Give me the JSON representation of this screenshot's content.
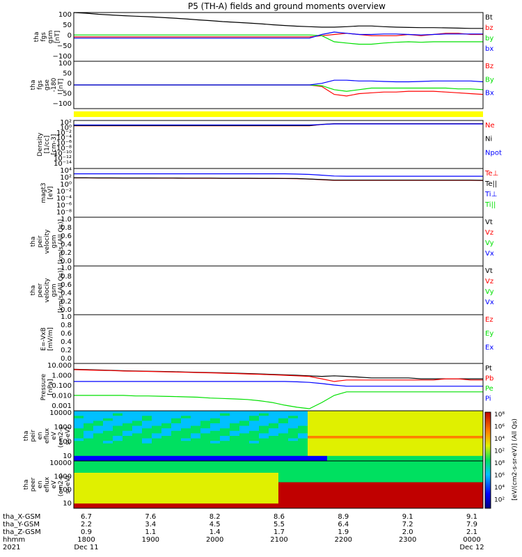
{
  "page": {
    "title": "P5 (TH-A) fields and ground moments overview"
  },
  "colors": {
    "black": "#000000",
    "red": "#ff0000",
    "green": "#00e000",
    "blue": "#0000ff",
    "yellow": "#ffff00"
  },
  "chart_data": [
    {
      "id": "fgs_gsm",
      "type": "line",
      "ylabel": [
        "tha",
        "fgs",
        "gsm",
        "[nT]"
      ],
      "ylim": [
        -100,
        100
      ],
      "yticks": [
        "100",
        "50",
        "0",
        "−50",
        "−100"
      ],
      "series": [
        {
          "name": "Bt",
          "color": "#000000",
          "values": [
            100,
            97,
            93,
            90,
            87,
            85,
            83,
            80,
            77,
            74,
            70,
            67,
            63,
            60,
            57,
            54,
            50,
            47,
            44,
            42,
            40,
            40,
            42,
            45,
            45,
            42,
            40,
            39,
            38,
            38,
            37,
            36,
            35,
            35
          ]
        },
        {
          "name": "bz",
          "color": "#ff0000",
          "values": [
            0,
            0,
            0,
            0,
            0,
            0,
            0,
            0,
            0,
            0,
            0,
            0,
            0,
            0,
            0,
            0,
            0,
            0,
            0,
            0,
            5,
            10,
            15,
            10,
            5,
            5,
            5,
            10,
            5,
            10,
            15,
            15,
            10,
            10
          ]
        },
        {
          "name": "by",
          "color": "#00e000",
          "values": [
            8,
            8,
            8,
            8,
            8,
            8,
            8,
            8,
            8,
            8,
            8,
            8,
            8,
            8,
            8,
            8,
            8,
            8,
            8,
            8,
            5,
            -20,
            -25,
            -30,
            -30,
            -25,
            -22,
            -20,
            -22,
            -20,
            -20,
            -20,
            -20,
            -20
          ]
        },
        {
          "name": "bx",
          "color": "#0000ff",
          "values": [
            -5,
            -5,
            -5,
            -5,
            -5,
            -5,
            -5,
            -5,
            -5,
            -5,
            -5,
            -5,
            -5,
            -5,
            -5,
            -5,
            -5,
            -5,
            -5,
            -5,
            10,
            20,
            15,
            10,
            10,
            12,
            12,
            10,
            8,
            10,
            12,
            12,
            12,
            12
          ]
        }
      ]
    },
    {
      "id": "fgs_gse",
      "type": "line",
      "ylabel": [
        "tha",
        "fgs",
        "gse",
        "-180",
        "[nT]"
      ],
      "ylim": [
        -150,
        150
      ],
      "yticks": [
        "100",
        "50",
        "0",
        "−50",
        "−100"
      ],
      "series": [
        {
          "name": "Bz",
          "color": "#ff0000",
          "values": [
            0,
            0,
            0,
            0,
            0,
            0,
            0,
            0,
            0,
            0,
            0,
            0,
            0,
            0,
            0,
            0,
            0,
            0,
            0,
            0,
            -10,
            -60,
            -70,
            -55,
            -50,
            -45,
            -45,
            -40,
            -40,
            -40,
            -45,
            -50,
            -55,
            -60
          ]
        },
        {
          "name": "By",
          "color": "#00e000",
          "values": [
            0,
            0,
            0,
            0,
            0,
            0,
            0,
            0,
            0,
            0,
            0,
            0,
            0,
            0,
            0,
            0,
            0,
            0,
            0,
            0,
            -5,
            -30,
            -40,
            -30,
            -20,
            -20,
            -20,
            -20,
            -20,
            -20,
            -20,
            -25,
            -25,
            -30
          ]
        },
        {
          "name": "Bx",
          "color": "#0000ff",
          "values": [
            0,
            0,
            0,
            0,
            0,
            0,
            0,
            0,
            0,
            0,
            0,
            0,
            0,
            0,
            0,
            0,
            0,
            0,
            0,
            0,
            10,
            30,
            30,
            25,
            25,
            22,
            20,
            20,
            22,
            25,
            25,
            25,
            25,
            20
          ]
        }
      ]
    },
    {
      "id": "density",
      "type": "line",
      "log": true,
      "ylabel": [
        "Density",
        "[1/cc]",
        "[cm-3]"
      ],
      "ylim": [
        1e-15,
        1000.0
      ],
      "yticks": [
        "10²",
        "10⁰",
        "10⁻²",
        "10⁻⁴",
        "10⁻⁶",
        "10⁻⁸",
        "10⁻¹⁰",
        "10⁻¹²",
        "10⁻¹⁴"
      ],
      "series": [
        {
          "name": "Ne",
          "color": "#ff0000",
          "values": [
            10,
            10,
            10,
            10,
            10,
            10,
            10,
            10,
            10,
            10,
            10,
            10,
            10,
            10,
            10,
            10,
            10,
            10,
            10,
            10,
            30,
            60,
            60,
            60,
            60,
            60,
            60,
            60,
            60,
            60,
            60,
            60,
            60,
            60
          ]
        },
        {
          "name": "Ni",
          "color": "#000000",
          "values": [
            12,
            12,
            12,
            12,
            12,
            12,
            12,
            12,
            12,
            12,
            12,
            12,
            12,
            12,
            12,
            12,
            12,
            12,
            12,
            12,
            35,
            60,
            60,
            60,
            60,
            60,
            60,
            60,
            60,
            60,
            60,
            60,
            60,
            60
          ]
        },
        {
          "name": "Npot",
          "color": "#0000ff",
          "values": [
            20,
            20,
            20,
            20,
            20,
            20,
            20,
            20,
            20,
            20,
            20,
            20,
            20,
            20,
            20,
            20,
            20,
            20,
            20,
            20,
            30,
            50,
            50,
            50,
            50,
            50,
            50,
            50,
            50,
            50,
            50,
            50,
            50,
            50
          ]
        }
      ]
    },
    {
      "id": "temperature",
      "type": "line",
      "log": true,
      "ylabel": [
        "magt3",
        "[eV]"
      ],
      "ylim": [
        1e-09,
        100000.0
      ],
      "yticks": [
        "10⁴",
        "10²",
        "10⁰",
        "10⁻²",
        "10⁻⁴",
        "10⁻⁶",
        "10⁻⁸"
      ],
      "series": [
        {
          "name": "Te⊥",
          "color": "#ff0000",
          "values": [
            200,
            200,
            190,
            190,
            180,
            180,
            180,
            170,
            170,
            160,
            160,
            160,
            150,
            150,
            150,
            140,
            140,
            130,
            120,
            90,
            60,
            40,
            40,
            40,
            40,
            40,
            40,
            40,
            40,
            40,
            40,
            40,
            40,
            35
          ]
        },
        {
          "name": "Te||",
          "color": "#000000",
          "values": [
            210,
            210,
            200,
            200,
            190,
            190,
            190,
            180,
            180,
            170,
            170,
            170,
            160,
            160,
            160,
            150,
            150,
            140,
            130,
            95,
            65,
            45,
            45,
            45,
            45,
            45,
            45,
            45,
            45,
            45,
            45,
            45,
            45,
            40
          ]
        },
        {
          "name": "Ti⊥",
          "color": "#0000ff",
          "values": [
            3000,
            3000,
            3000,
            3000,
            3000,
            3000,
            3000,
            3000,
            3000,
            3000,
            3000,
            3000,
            3000,
            3000,
            3000,
            3000,
            3000,
            3000,
            2500,
            2000,
            1200,
            700,
            600,
            600,
            600,
            600,
            600,
            600,
            600,
            600,
            600,
            600,
            600,
            600
          ]
        },
        {
          "name": "Ti||",
          "color": "#00e000",
          "values": []
        }
      ]
    },
    {
      "id": "peir_velocity",
      "type": "line",
      "ylabel": [
        "tha",
        "peir",
        "velocity",
        "gsm",
        "[km/s (All Qs)]"
      ],
      "ylim": [
        0,
        1
      ],
      "yticks": [
        "1.0",
        "0.8",
        "0.6",
        "0.4",
        "0.2",
        "0.0"
      ],
      "series": [
        {
          "name": "Vt",
          "color": "#000000",
          "values": []
        },
        {
          "name": "Vz",
          "color": "#ff0000",
          "values": []
        },
        {
          "name": "Vy",
          "color": "#00e000",
          "values": []
        },
        {
          "name": "Vx",
          "color": "#0000ff",
          "values": []
        }
      ]
    },
    {
      "id": "peer_velocity",
      "type": "line",
      "ylabel": [
        "tha",
        "peer",
        "velocity",
        "gsm",
        "[km/s (All Qs)]"
      ],
      "ylim": [
        0,
        1
      ],
      "yticks": [
        "1.0",
        "0.8",
        "0.6",
        "0.4",
        "0.2",
        "0.0"
      ],
      "series": [
        {
          "name": "Vt",
          "color": "#000000",
          "values": []
        },
        {
          "name": "Vz",
          "color": "#ff0000",
          "values": []
        },
        {
          "name": "Vy",
          "color": "#00e000",
          "values": []
        },
        {
          "name": "Vx",
          "color": "#0000ff",
          "values": []
        }
      ]
    },
    {
      "id": "efield",
      "type": "line",
      "ylabel": [
        "E=-VxB",
        "[mV/m]"
      ],
      "ylim": [
        0,
        1
      ],
      "yticks": [
        "1.0",
        "0.8",
        "0.6",
        "0.4",
        "0.2",
        "0.0"
      ],
      "series": [
        {
          "name": "Ez",
          "color": "#ff0000",
          "values": []
        },
        {
          "name": "Ey",
          "color": "#00e000",
          "values": []
        },
        {
          "name": "Ex",
          "color": "#0000ff",
          "values": []
        }
      ]
    },
    {
      "id": "pressure",
      "type": "line",
      "log": true,
      "ylabel": [
        "Pressure",
        "[nPa]"
      ],
      "ylim": [
        0.001,
        10
      ],
      "yticks": [
        "10.000",
        "1.000",
        "0.100",
        "0.010",
        "0.001"
      ],
      "series": [
        {
          "name": "Pt",
          "color": "#000000",
          "values": [
            3.2,
            3.0,
            2.8,
            2.6,
            2.4,
            2.3,
            2.2,
            2.1,
            2.0,
            1.9,
            1.8,
            1.7,
            1.6,
            1.5,
            1.4,
            1.3,
            1.2,
            1.1,
            1.0,
            0.9,
            0.8,
            0.9,
            0.8,
            0.7,
            0.6,
            0.6,
            0.6,
            0.6,
            0.5,
            0.5,
            0.5,
            0.5,
            0.5,
            0.5
          ]
        },
        {
          "name": "Pb",
          "color": "#ff0000",
          "values": [
            3.0,
            2.8,
            2.6,
            2.5,
            2.3,
            2.2,
            2.1,
            2.0,
            1.9,
            1.8,
            1.7,
            1.6,
            1.5,
            1.4,
            1.3,
            1.2,
            1.1,
            1.0,
            0.9,
            0.8,
            0.5,
            0.3,
            0.4,
            0.4,
            0.4,
            0.4,
            0.4,
            0.4,
            0.4,
            0.4,
            0.5,
            0.5,
            0.4,
            0.4
          ]
        },
        {
          "name": "Pe",
          "color": "#00e000",
          "values": [
            0.02,
            0.02,
            0.02,
            0.02,
            0.02,
            0.018,
            0.018,
            0.017,
            0.016,
            0.015,
            0.014,
            0.012,
            0.011,
            0.01,
            0.009,
            0.007,
            0.005,
            0.003,
            0.002,
            0.0015,
            0.005,
            0.02,
            0.04,
            0.04,
            0.04,
            0.04,
            0.04,
            0.04,
            0.04,
            0.04,
            0.04,
            0.04,
            0.04,
            0.04
          ]
        },
        {
          "name": "Pi",
          "color": "#0000ff",
          "values": [
            0.3,
            0.3,
            0.3,
            0.3,
            0.3,
            0.3,
            0.3,
            0.3,
            0.3,
            0.3,
            0.3,
            0.3,
            0.3,
            0.3,
            0.3,
            0.3,
            0.3,
            0.3,
            0.28,
            0.25,
            0.2,
            0.15,
            0.12,
            0.12,
            0.12,
            0.12,
            0.12,
            0.12,
            0.12,
            0.12,
            0.12,
            0.12,
            0.12,
            0.12
          ]
        }
      ]
    },
    {
      "id": "peir_spec",
      "type": "heatmap",
      "ylabel": [
        "tha",
        "peir",
        "en",
        "eflux",
        "eV",
        "(cm2-s-",
        "sr-eV)"
      ],
      "ylim": [
        5,
        30000
      ],
      "yticks": [
        "10000",
        "1000",
        "100",
        "10"
      ]
    },
    {
      "id": "peer_spec",
      "type": "heatmap",
      "ylabel": [
        "tha",
        "peer",
        "en",
        "eflux",
        "eV",
        "(cm2-s-",
        "sr-eV)"
      ],
      "ylim": [
        5,
        30000
      ],
      "yticks": [
        "10000",
        "1000",
        "100",
        "10"
      ]
    }
  ],
  "colorbar": {
    "label": "[eV/(cm2-s-sr-eV)] (All Qs)",
    "ticks": [
      "10⁸",
      "10⁶",
      "10⁴",
      "10²",
      "10⁸",
      "10⁶",
      "10⁴",
      "10²"
    ]
  },
  "x_axis": {
    "rows": [
      {
        "label": "tha_X-GSM",
        "values": [
          "6.7",
          "7.6",
          "8.2",
          "8.6",
          "8.9",
          "9.1",
          "9.1"
        ]
      },
      {
        "label": "tha_Y-GSM",
        "values": [
          "2.2",
          "3.4",
          "4.5",
          "5.5",
          "6.4",
          "7.2",
          "7.9"
        ]
      },
      {
        "label": "tha_Z-GSM",
        "values": [
          "0.9",
          "1.1",
          "1.4",
          "1.7",
          "1.9",
          "2.0",
          "2.1"
        ]
      },
      {
        "label": "hhmm",
        "values": [
          "1800",
          "1900",
          "2000",
          "2100",
          "2200",
          "2300",
          "0000"
        ]
      },
      {
        "label": "2021",
        "values": [
          "Dec 11",
          "",
          "",
          "",
          "",
          "",
          "Dec 12"
        ]
      }
    ]
  }
}
